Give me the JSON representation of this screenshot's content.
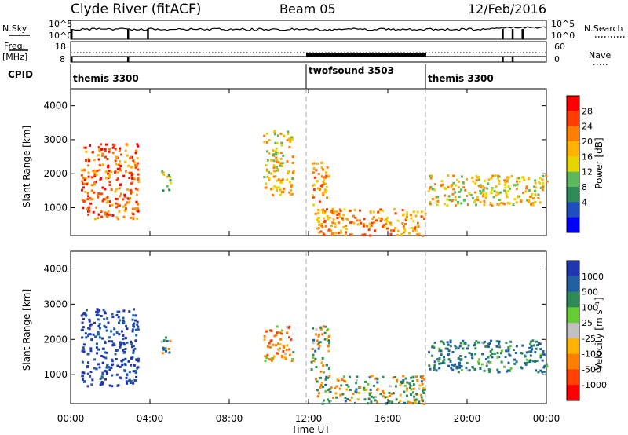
{
  "header": {
    "station": "Clyde River (fitACF)",
    "beam": "Beam 05",
    "date": "12/Feb/2016"
  },
  "summary_panels": {
    "nsky_label": "N.Sky",
    "nsearch_label": "N.Search",
    "freq_label_line1": "Freq.",
    "freq_label_line2": "[MHz]",
    "nave_label": "Nave",
    "cpid_label": "CPID",
    "noise_axis_ticks": [
      "10^5",
      "10^0"
    ],
    "freq_axis_ticks": [
      "18",
      "8"
    ],
    "nave_axis_ticks": [
      "60",
      "0"
    ]
  },
  "cpid_segments": [
    {
      "name": "themis 3300",
      "start_h": 0,
      "end_h": 12
    },
    {
      "name": "twofsound 3503",
      "start_h": 12,
      "end_h": 18
    },
    {
      "name": "themis 3300",
      "start_h": 18,
      "end_h": 24
    }
  ],
  "power_colorbar": {
    "label": "Power [dB]",
    "ticks": [
      "28",
      "24",
      "20",
      "16",
      "12",
      "8",
      "4"
    ],
    "colors": [
      "#ff0000",
      "#ff3d00",
      "#ff8000",
      "#ffb300",
      "#e6d600",
      "#5cb85c",
      "#2e8b57",
      "#1f4fbf",
      "#0000ff"
    ]
  },
  "velocity_colorbar": {
    "label": "Velocity [m s⁻¹]",
    "ticks": [
      "1000",
      "500",
      "100",
      "25",
      "-25",
      "-100",
      "-500",
      "-1000"
    ],
    "colors": [
      "#2035b0",
      "#2060a0",
      "#2e8b57",
      "#66cc33",
      "#c0c0c0",
      "#ffb300",
      "#ff8000",
      "#ff4000",
      "#ff0000"
    ]
  },
  "chart_data": [
    {
      "type": "heatmap",
      "title": "",
      "ylabel": "Slant Range [km]",
      "xlabel": "",
      "ylim": [
        180,
        4500
      ],
      "yticks": [
        "4000",
        "3000",
        "2000",
        "1000"
      ],
      "xlim_hours": [
        0,
        24
      ],
      "parameter": "Power [dB]",
      "scatter_regions": [
        {
          "t0": 0.5,
          "t1": 3.4,
          "r0": 700,
          "r1": 2900,
          "value": 22
        },
        {
          "t0": 4.5,
          "t1": 5.0,
          "r0": 1500,
          "r1": 2100,
          "value": 10
        },
        {
          "t0": 9.7,
          "t1": 11.2,
          "r0": 1400,
          "r1": 3300,
          "value": 14
        },
        {
          "t0": 12.1,
          "t1": 13.0,
          "r0": 1100,
          "r1": 2400,
          "value": 18
        },
        {
          "t0": 12.3,
          "t1": 17.9,
          "r0": 200,
          "r1": 1000,
          "value": 18
        },
        {
          "t0": 18.0,
          "t1": 24.0,
          "r0": 1100,
          "r1": 2000,
          "value": 14
        }
      ]
    },
    {
      "type": "heatmap",
      "title": "",
      "ylabel": "Slant Range [km]",
      "xlabel": "Time UT",
      "ylim": [
        180,
        4500
      ],
      "yticks": [
        "4000",
        "3000",
        "2000",
        "1000"
      ],
      "xlim_hours": [
        0,
        24
      ],
      "xticks": [
        "00:00",
        "04:00",
        "08:00",
        "12:00",
        "16:00",
        "20:00",
        "00:00"
      ],
      "parameter": "Velocity [m s⁻¹]",
      "scatter_regions": [
        {
          "t0": 0.5,
          "t1": 3.4,
          "r0": 700,
          "r1": 2900,
          "value": 800
        },
        {
          "t0": 4.5,
          "t1": 5.0,
          "r0": 1500,
          "r1": 2100,
          "value": 100
        },
        {
          "t0": 9.7,
          "t1": 11.2,
          "r0": 1400,
          "r1": 2400,
          "value": -200
        },
        {
          "t0": 12.1,
          "t1": 13.0,
          "r0": 1100,
          "r1": 2400,
          "value": 60
        },
        {
          "t0": 12.3,
          "t1": 17.9,
          "r0": 200,
          "r1": 1000,
          "value": 40
        },
        {
          "t0": 18.0,
          "t1": 24.0,
          "r0": 1100,
          "r1": 2000,
          "value": 300
        }
      ]
    }
  ]
}
